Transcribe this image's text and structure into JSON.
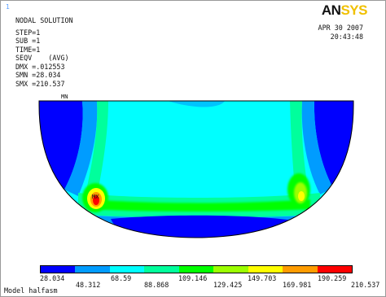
{
  "window_number": "1",
  "header": {
    "title": "NODAL SOLUTION",
    "lines": [
      "STEP=1",
      "SUB =1",
      "TIME=1",
      "SEQV    (AVG)",
      "DMX =.012553",
      "SMN =28.034",
      "SMX =210.537"
    ]
  },
  "logo": {
    "part1": "AN",
    "part2": "SYS"
  },
  "date": "APR 30 2007",
  "time": "20:43:48",
  "markers": {
    "min": "MN",
    "max": "MX"
  },
  "legend": {
    "colors": [
      "#0000ff",
      "#009cff",
      "#00ffff",
      "#00ff9c",
      "#00ff00",
      "#9cff00",
      "#ffff00",
      "#ff9c00",
      "#ff0000"
    ],
    "labels_top": [
      "28.034",
      "68.59",
      "109.146",
      "149.703",
      "190.259"
    ],
    "labels_bottom": [
      "48.312",
      "88.868",
      "129.425",
      "169.981",
      "210.537"
    ]
  },
  "footer": "Model halfasm"
}
